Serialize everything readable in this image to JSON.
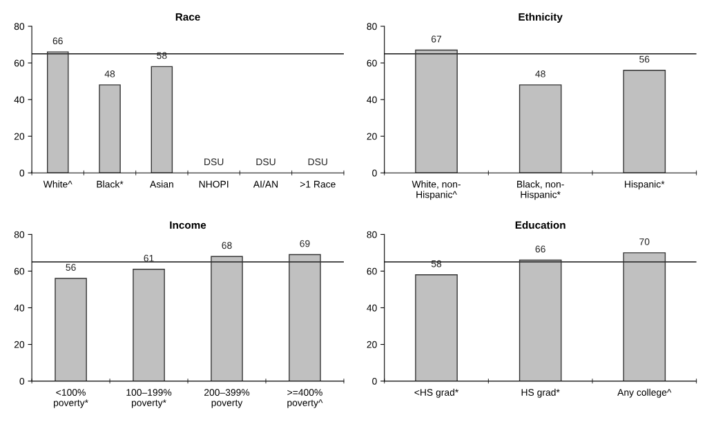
{
  "chart_data": [
    {
      "type": "bar",
      "title": "Race",
      "categories": [
        "White^",
        "Black*",
        "Asian",
        "NHOPI",
        "AI/AN",
        ">1 Race"
      ],
      "values": [
        66,
        48,
        58,
        null,
        null,
        null
      ],
      "value_labels": [
        "66",
        "48",
        "58",
        "DSU",
        "DSU",
        "DSU"
      ],
      "color": "#c0c0c0",
      "ylim": [
        0,
        80
      ],
      "yticks": [
        0,
        20,
        40,
        60,
        80
      ],
      "ref_lines": [
        {
          "axis": "y",
          "value": 65,
          "color": "#333333"
        }
      ],
      "grid": false,
      "legend": false
    },
    {
      "type": "bar",
      "title": "Ethnicity",
      "categories": [
        "White, non-\nHispanic^",
        "Black, non-\nHispanic*",
        "Hispanic*"
      ],
      "values": [
        67,
        48,
        56
      ],
      "color": "#c0c0c0",
      "data_labels": true,
      "ylim": [
        0,
        80
      ],
      "yticks": [
        0,
        20,
        40,
        60,
        80
      ],
      "ref_lines": [
        {
          "axis": "y",
          "value": 65,
          "color": "#333333"
        }
      ],
      "grid": false,
      "legend": false
    },
    {
      "type": "bar",
      "title": "Income",
      "categories": [
        "<100%\npoverty*",
        "100–199%\npoverty*",
        "200–399%\npoverty",
        ">=400%\npoverty^"
      ],
      "values": [
        56,
        61,
        68,
        69
      ],
      "color": "#c0c0c0",
      "data_labels": true,
      "ylim": [
        0,
        80
      ],
      "yticks": [
        0,
        20,
        40,
        60,
        80
      ],
      "ref_lines": [
        {
          "axis": "y",
          "value": 65,
          "color": "#333333"
        }
      ],
      "grid": false,
      "legend": false
    },
    {
      "type": "bar",
      "title": "Education",
      "categories": [
        "<HS grad*",
        "HS grad*",
        "Any college^"
      ],
      "values": [
        58,
        66,
        70
      ],
      "color": "#c0c0c0",
      "data_labels": true,
      "ylim": [
        0,
        80
      ],
      "yticks": [
        0,
        20,
        40,
        60,
        80
      ],
      "ref_lines": [
        {
          "axis": "y",
          "value": 65,
          "color": "#333333"
        }
      ],
      "grid": false,
      "legend": false
    }
  ]
}
